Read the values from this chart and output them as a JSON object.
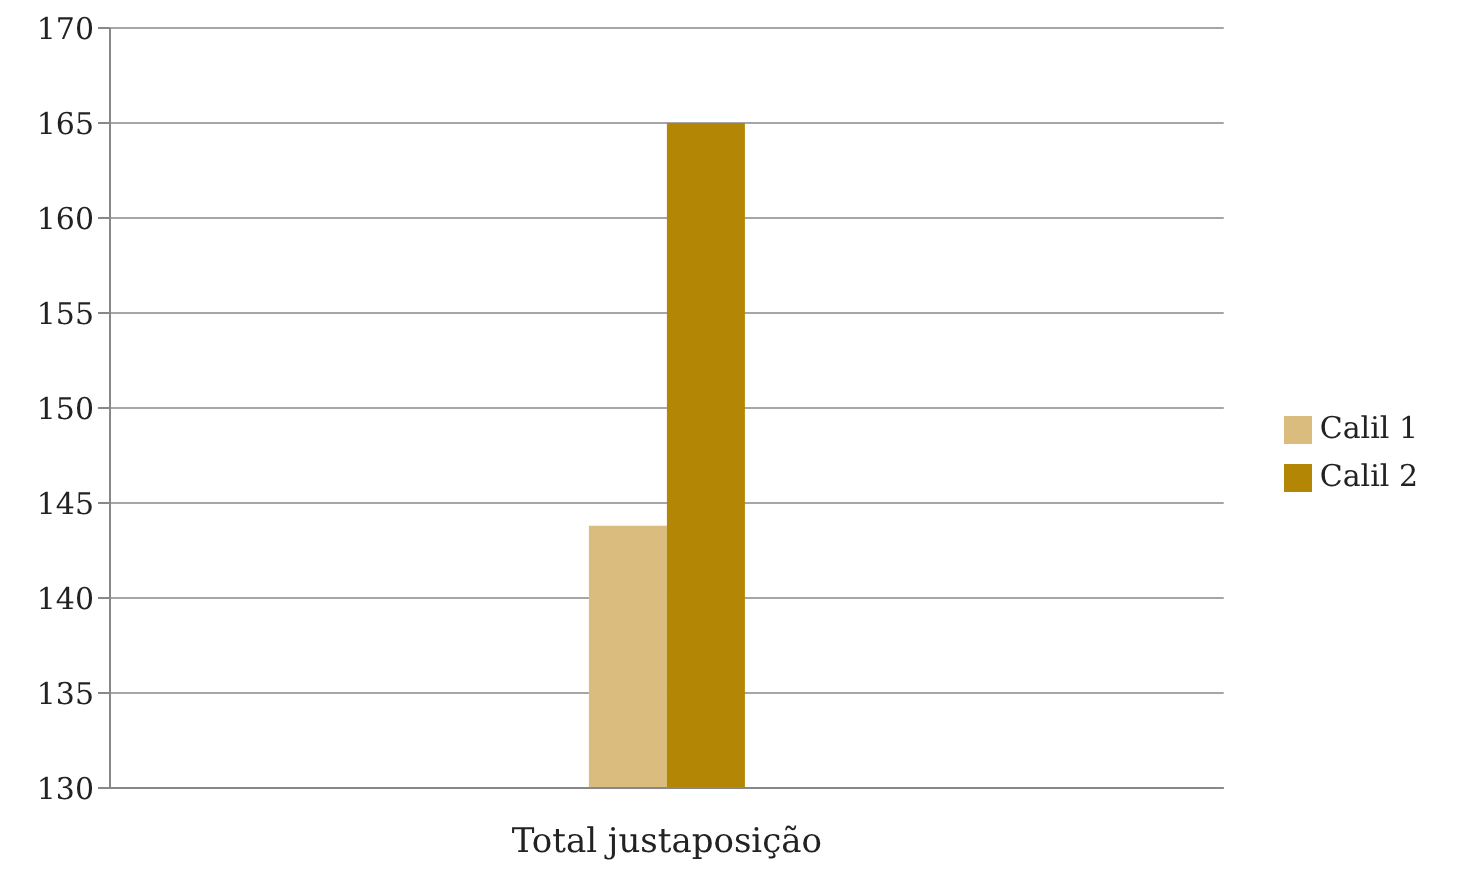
{
  "chart_data": {
    "type": "bar",
    "categories": [
      "Total justaposição"
    ],
    "series": [
      {
        "name": "Calil 1",
        "color": "#d9bc7e",
        "values": [
          143.8
        ]
      },
      {
        "name": "Calil 2",
        "color": "#b38705",
        "values": [
          165
        ]
      }
    ],
    "ylim": [
      130,
      170
    ],
    "yticks": [
      130,
      135,
      140,
      145,
      150,
      155,
      160,
      165,
      170
    ],
    "grid": "y",
    "legend": "right"
  }
}
